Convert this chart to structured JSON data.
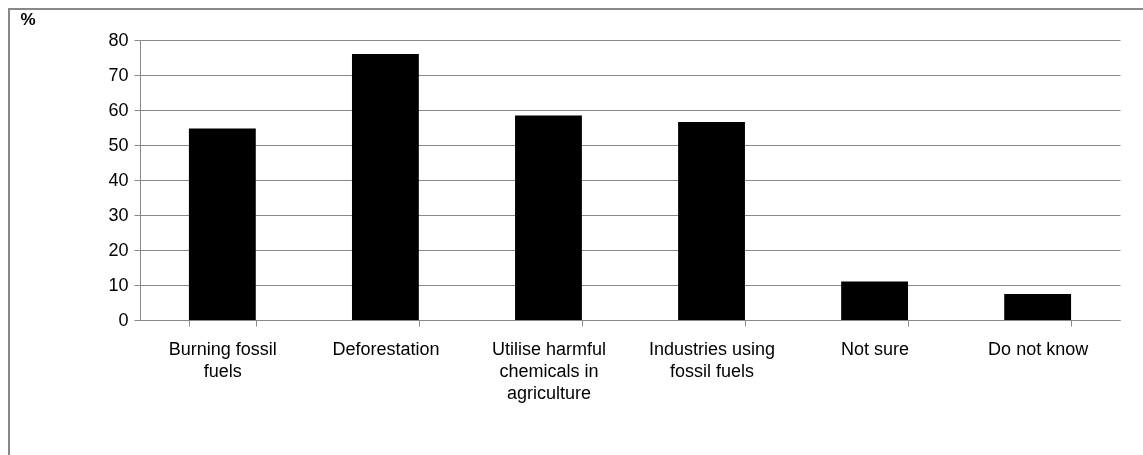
{
  "chart_data": {
    "type": "bar",
    "ylabel": "%",
    "categories": [
      "Burning fossil fuels",
      "Deforestation",
      "Utilise harmful chemicals in agriculture",
      "Industries using fossil fuels",
      "Not sure",
      "Do not know"
    ],
    "values": [
      54.7,
      76.0,
      58.4,
      56.6,
      11.0,
      7.4
    ],
    "color": "#000000",
    "ylim": [
      0,
      80
    ],
    "yticks": [
      0,
      10,
      20,
      30,
      40,
      50,
      60,
      70,
      80
    ],
    "grid": "y"
  }
}
